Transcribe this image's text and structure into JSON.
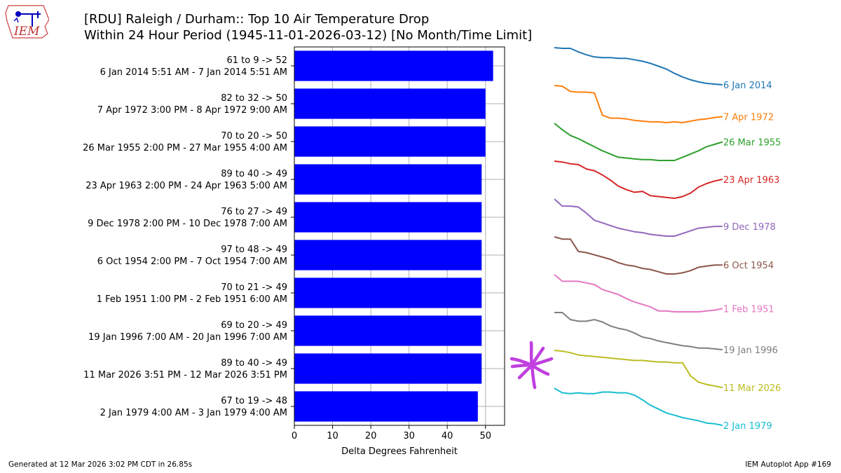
{
  "header": {
    "logo_text": "IEM",
    "title_line1": "[RDU] Raleigh / Durham:: Top 10 Air Temperature Drop",
    "title_line2": "Within 24 Hour Period (1945-11-01-2026-03-12) [No Month/Time Limit]"
  },
  "footer": {
    "generated": "Generated at 12 Mar 2026 3:02 PM CDT in 26.85s",
    "app": "IEM Autoplot App #169"
  },
  "colors": {
    "bar": "#0000ff",
    "grid": "#b0b0b0",
    "annotation_star": "#c040e0"
  },
  "chart_data": {
    "type": "bar",
    "orientation": "horizontal",
    "title": "[RDU] Raleigh / Durham:: Top 10 Air Temperature Drop Within 24 Hour Period (1945-11-01-2026-03-12) [No Month/Time Limit]",
    "xlabel": "Delta Degrees Fahrenheit",
    "ylabel": "",
    "xlim": [
      0,
      55
    ],
    "xticks": [
      0,
      10,
      20,
      30,
      40,
      50
    ],
    "grid": true,
    "categories": [
      {
        "label1": "61 to 9 -> 52",
        "label2": "6 Jan 2014 5:51 AM - 7 Jan 2014 5:51 AM"
      },
      {
        "label1": "82 to 32 -> 50",
        "label2": "7 Apr 1972 3:00 PM - 8 Apr 1972 9:00 AM"
      },
      {
        "label1": "70 to 20 -> 50",
        "label2": "26 Mar 1955 2:00 PM - 27 Mar 1955 4:00 AM"
      },
      {
        "label1": "89 to 40 -> 49",
        "label2": "23 Apr 1963 2:00 PM - 24 Apr 1963 5:00 AM"
      },
      {
        "label1": "76 to 27 -> 49",
        "label2": "9 Dec 1978 2:00 PM - 10 Dec 1978 7:00 AM"
      },
      {
        "label1": "97 to 48 -> 49",
        "label2": "6 Oct 1954 2:00 PM - 7 Oct 1954 7:00 AM"
      },
      {
        "label1": "70 to 21 -> 49",
        "label2": "1 Feb 1951 1:00 PM - 2 Feb 1951 6:00 AM"
      },
      {
        "label1": "69 to 20 -> 49",
        "label2": "19 Jan 1996 7:00 AM - 20 Jan 1996 7:00 AM"
      },
      {
        "label1": "89 to 40 -> 49",
        "label2": "11 Mar 2026 3:51 PM - 12 Mar 2026 3:51 PM"
      },
      {
        "label1": "67 to 19 -> 48",
        "label2": "2 Jan 1979 4:00 AM - 3 Jan 1979 4:00 AM"
      }
    ],
    "values": [
      52,
      50,
      50,
      49,
      49,
      49,
      49,
      49,
      49,
      48
    ],
    "sparklines": [
      {
        "name": "6 Jan 2014",
        "color": "#1f77b4",
        "values": [
          61,
          60,
          60,
          55,
          51,
          48,
          47,
          47,
          46,
          46,
          44,
          42,
          39,
          35,
          31,
          25,
          20,
          16,
          13,
          11,
          10,
          9
        ]
      },
      {
        "name": "7 Apr 1972",
        "color": "#ff7f0e",
        "values": [
          82,
          81,
          74,
          73,
          73,
          72,
          42,
          38,
          38,
          37,
          35,
          34,
          33,
          33,
          32,
          33,
          32,
          34,
          36,
          37,
          39,
          40
        ]
      },
      {
        "name": "26 Mar 1955",
        "color": "#2ca02c",
        "values": [
          70,
          62,
          55,
          51,
          46,
          41,
          36,
          32,
          28,
          27,
          26,
          25,
          25,
          24,
          24,
          24,
          28,
          32,
          36,
          41,
          44,
          47
        ]
      },
      {
        "name": "23 Apr 1963",
        "color": "#d62728",
        "values": [
          89,
          88,
          86,
          85,
          80,
          78,
          73,
          67,
          60,
          56,
          53,
          54,
          49,
          48,
          47,
          46,
          48,
          52,
          59,
          63,
          66,
          68
        ]
      },
      {
        "name": "9 Dec 1978",
        "color": "#9467bd",
        "values": [
          76,
          68,
          68,
          67,
          60,
          52,
          49,
          46,
          43,
          41,
          39,
          38,
          36,
          35,
          34,
          34,
          37,
          40,
          43,
          44,
          45,
          45
        ]
      },
      {
        "name": "6 Oct 1954",
        "color": "#8c564b",
        "values": [
          97,
          95,
          95,
          84,
          83,
          81,
          79,
          77,
          74,
          72,
          71,
          69,
          68,
          66,
          64,
          64,
          65,
          67,
          70,
          71,
          72,
          72
        ]
      },
      {
        "name": "1 Feb 1951",
        "color": "#e377c2",
        "values": [
          70,
          62,
          62,
          62,
          60,
          58,
          52,
          49,
          46,
          41,
          37,
          34,
          31,
          26,
          26,
          25,
          25,
          25,
          25,
          26,
          27,
          29
        ]
      },
      {
        "name": "19 Jan 1996",
        "color": "#7f7f7f",
        "values": [
          69,
          69,
          60,
          58,
          58,
          60,
          57,
          52,
          49,
          47,
          43,
          38,
          36,
          33,
          31,
          29,
          27,
          26,
          24,
          24,
          23,
          22
        ]
      },
      {
        "name": "11 Mar 2026",
        "color": "#bcbd22",
        "values": [
          89,
          88,
          86,
          83,
          82,
          81,
          80,
          79,
          78,
          77,
          76,
          76,
          75,
          74,
          74,
          73,
          73,
          56,
          48,
          45,
          43,
          41
        ]
      },
      {
        "name": "2 Jan 1979",
        "color": "#17becf",
        "values": [
          67,
          61,
          60,
          61,
          60,
          60,
          62,
          62,
          61,
          61,
          58,
          52,
          45,
          40,
          35,
          32,
          29,
          27,
          25,
          22,
          21,
          19
        ]
      }
    ]
  }
}
